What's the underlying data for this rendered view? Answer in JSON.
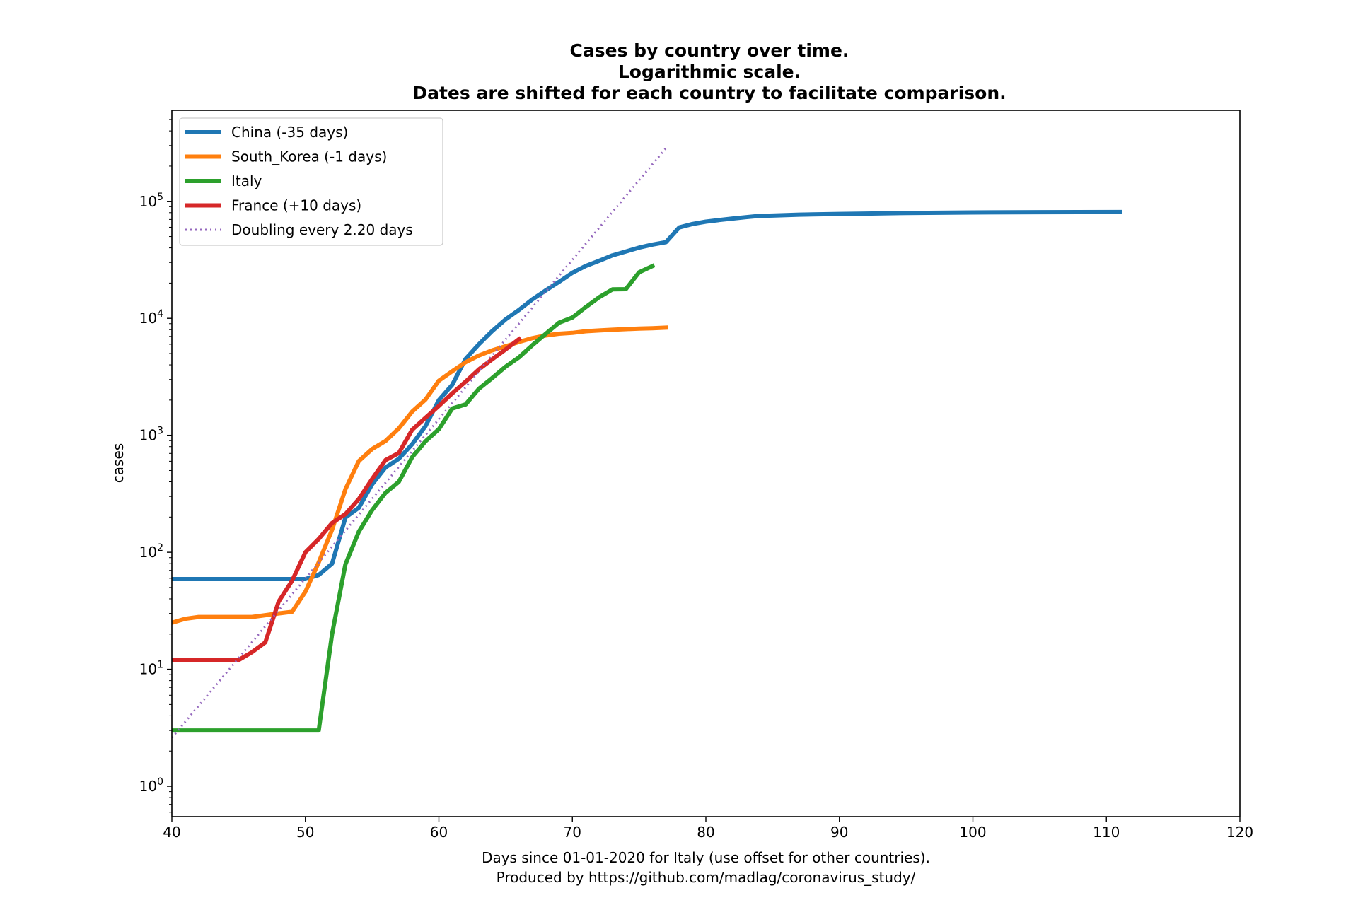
{
  "chart_data": {
    "type": "line",
    "title_lines": [
      "Cases by country over time.",
      "Logarithmic scale.",
      "Dates are shifted for each country to facilitate comparison."
    ],
    "xlabel_lines": [
      "Days since 01-01-2020 for Italy (use offset for other countries).",
      "Produced by https://github.com/madlag/coronavirus_study/"
    ],
    "ylabel": "cases",
    "xlim": [
      40,
      120
    ],
    "ylim": [
      0.55,
      600000
    ],
    "yscale": "log",
    "x_ticks": [
      40,
      50,
      60,
      70,
      80,
      90,
      100,
      110,
      120
    ],
    "y_ticks": [
      {
        "value": 1,
        "base": "10",
        "exp": "0"
      },
      {
        "value": 10,
        "base": "10",
        "exp": "1"
      },
      {
        "value": 100,
        "base": "10",
        "exp": "2"
      },
      {
        "value": 1000,
        "base": "10",
        "exp": "3"
      },
      {
        "value": 10000,
        "base": "10",
        "exp": "4"
      },
      {
        "value": 100000,
        "base": "10",
        "exp": "5"
      }
    ],
    "grid": false,
    "legend_position": "top-left",
    "series": [
      {
        "name": "China (-35 days)",
        "color": "#1f77b4",
        "style": "solid",
        "x": [
          40,
          45,
          50,
          51,
          52,
          53,
          54,
          55,
          56,
          57,
          58,
          59,
          60,
          61,
          62,
          63,
          64,
          65,
          66,
          67,
          68,
          69,
          70,
          71,
          72,
          73,
          74,
          75,
          76,
          77,
          78,
          79,
          80,
          81,
          82,
          83,
          84,
          85,
          86,
          87,
          88,
          90,
          92,
          95,
          100,
          105,
          111
        ],
        "y": [
          59,
          59,
          59,
          64,
          80,
          198,
          240,
          380,
          530,
          630,
          840,
          1200,
          2000,
          2700,
          4500,
          6000,
          7800,
          9800,
          11800,
          14500,
          17300,
          20500,
          24500,
          28000,
          31000,
          34500,
          37200,
          40200,
          42700,
          44700,
          59800,
          64000,
          67000,
          69200,
          71300,
          73200,
          75000,
          75600,
          76300,
          76900,
          77200,
          78000,
          78600,
          79500,
          80300,
          80800,
          81000
        ]
      },
      {
        "name": "South_Korea (-1 days)",
        "color": "#ff7f0e",
        "style": "solid",
        "x": [
          40,
          41,
          42,
          43,
          44,
          45,
          46,
          47,
          48,
          49,
          50,
          51,
          52,
          53,
          54,
          55,
          56,
          57,
          58,
          59,
          60,
          61,
          62,
          63,
          64,
          65,
          66,
          67,
          68,
          69,
          70,
          71,
          72,
          73,
          74,
          75,
          76,
          77
        ],
        "y": [
          25,
          27,
          28,
          28,
          28,
          28,
          28,
          29,
          30,
          31,
          46,
          82,
          156,
          346,
          602,
          763,
          893,
          1146,
          1595,
          2022,
          2931,
          3526,
          4212,
          4812,
          5328,
          5766,
          6284,
          6767,
          7134,
          7382,
          7513,
          7755,
          7869,
          7979,
          8086,
          8162,
          8236,
          8320
        ]
      },
      {
        "name": "Italy",
        "color": "#2ca02c",
        "style": "solid",
        "x": [
          40,
          45,
          50,
          51,
          52,
          53,
          54,
          55,
          56,
          57,
          58,
          59,
          60,
          61,
          62,
          63,
          64,
          65,
          66,
          67,
          68,
          69,
          70,
          71,
          72,
          73,
          74,
          75,
          76
        ],
        "y": [
          3,
          3,
          3,
          3,
          20,
          79,
          150,
          229,
          322,
          400,
          650,
          888,
          1128,
          1694,
          1835,
          2502,
          3089,
          3858,
          4636,
          5883,
          7375,
          9172,
          10149,
          12462,
          15113,
          17660,
          17750,
          24747,
          27980
        ]
      },
      {
        "name": "France (+10 days)",
        "color": "#d62728",
        "style": "solid",
        "x": [
          40,
          45,
          46,
          47,
          48,
          49,
          50,
          51,
          52,
          53,
          54,
          55,
          56,
          57,
          58,
          59,
          60,
          61,
          62,
          63,
          64,
          65,
          66
        ],
        "y": [
          12,
          12,
          14,
          17,
          38,
          57,
          100,
          130,
          178,
          212,
          285,
          423,
          613,
          706,
          1116,
          1412,
          1784,
          2281,
          2876,
          3661,
          4469,
          5423,
          6633
        ]
      },
      {
        "name": "Doubling every 2.20 days",
        "color": "#9467bd",
        "style": "dotted",
        "x": [
          40,
          77
        ],
        "y": [
          2.6,
          284000
        ]
      }
    ]
  }
}
